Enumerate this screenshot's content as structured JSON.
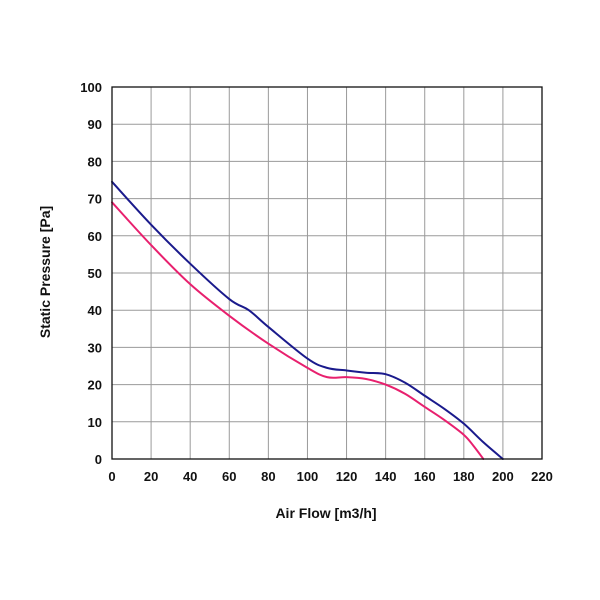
{
  "chart_data": {
    "type": "line",
    "title": "",
    "xlabel": "Air Flow [m3/h]",
    "ylabel": "Static Pressure [Pa]",
    "xlim": [
      0,
      220
    ],
    "ylim": [
      0,
      100
    ],
    "xticks": [
      0,
      20,
      40,
      60,
      80,
      100,
      120,
      140,
      160,
      180,
      200,
      220
    ],
    "yticks": [
      0,
      10,
      20,
      30,
      40,
      50,
      60,
      70,
      80,
      90,
      100
    ],
    "grid": true,
    "legend": "none",
    "series": [
      {
        "color": "#1a1a8c",
        "x": [
          0,
          20,
          40,
          60,
          70,
          80,
          100,
          110,
          120,
          130,
          140,
          150,
          160,
          170,
          180,
          190,
          200
        ],
        "y": [
          74.5,
          63,
          52.5,
          43,
          40,
          35.5,
          27,
          24.5,
          23.8,
          23.2,
          22.8,
          20.5,
          17,
          13.5,
          9.5,
          4.5,
          0
        ]
      },
      {
        "color": "#e8206e",
        "x": [
          0,
          20,
          40,
          60,
          80,
          100,
          110,
          120,
          130,
          140,
          150,
          160,
          170,
          180,
          185,
          190
        ],
        "y": [
          69,
          57.5,
          47,
          38.5,
          31,
          24.5,
          22,
          22,
          21.5,
          20,
          17.5,
          14,
          10.5,
          6.5,
          3.5,
          0
        ]
      }
    ]
  }
}
